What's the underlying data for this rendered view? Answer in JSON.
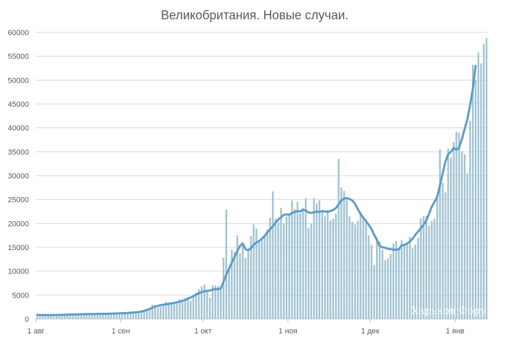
{
  "chart_data": {
    "type": "bar",
    "title": "Великобритания. Новые случаи.",
    "xlabel": "",
    "ylabel": "",
    "ylim": [
      0,
      60000
    ],
    "yticks": [
      0,
      5000,
      10000,
      15000,
      20000,
      25000,
      30000,
      35000,
      40000,
      45000,
      50000,
      55000,
      60000
    ],
    "xticks": [
      {
        "day": 0,
        "label": "1 авг"
      },
      {
        "day": 31,
        "label": "1 сен"
      },
      {
        "day": 61,
        "label": "1 окт"
      },
      {
        "day": 92,
        "label": "1 ноя"
      },
      {
        "day": 122,
        "label": "1 дек"
      },
      {
        "day": 153,
        "label": "1 янв"
      }
    ],
    "grid": true,
    "legend": "none",
    "series": [
      {
        "type": "bar",
        "color": "#9dc3d5",
        "values": [
          900,
          750,
          850,
          700,
          800,
          950,
          850,
          750,
          800,
          900,
          850,
          950,
          1000,
          900,
          1100,
          1050,
          1200,
          1000,
          1100,
          1150,
          1050,
          1000,
          1100,
          1050,
          1150,
          1100,
          1200,
          1300,
          1150,
          1200,
          1250,
          1300,
          1250,
          1400,
          1350,
          1500,
          1450,
          1600,
          1700,
          1550,
          1800,
          2100,
          3000,
          2900,
          2400,
          2600,
          3200,
          3600,
          3500,
          3300,
          3100,
          3500,
          4100,
          3700,
          4400,
          4600,
          3800,
          4800,
          5500,
          6200,
          6800,
          7200,
          6000,
          4500,
          7100,
          7000,
          6900,
          6800,
          12800,
          22900,
          11000,
          14500,
          14000,
          17500,
          13800,
          16000,
          12800,
          14200,
          17300,
          19800,
          18900,
          16200,
          16500,
          17500,
          18800,
          21200,
          26700,
          21000,
          20200,
          23200,
          20000,
          21500,
          22000,
          24800,
          23000,
          24500,
          22100,
          23200,
          25300,
          19000,
          20000,
          25300,
          24200,
          24800,
          22500,
          21500,
          22800,
          20600,
          21000,
          22000,
          33500,
          27500,
          26800,
          24900,
          21500,
          20300,
          19800,
          20500,
          22300,
          20800,
          20200,
          17500,
          15500,
          11300,
          17000,
          16200,
          14500,
          12300,
          12700,
          13600,
          15800,
          16300,
          14700,
          16500,
          15700,
          16000,
          17200,
          14800,
          15600,
          17000,
          21000,
          21500,
          21600,
          19500,
          20500,
          21000,
          25200,
          35500,
          28500,
          26500,
          35700,
          33800,
          37000,
          39200,
          39000,
          35100,
          34500,
          30500,
          41500,
          53200,
          50000,
          55800,
          53500,
          57600,
          58800
        ]
      },
      {
        "type": "line",
        "name": "",
        "color": "#5b9bc8",
        "values": [
          850,
          840,
          830,
          820,
          810,
          820,
          830,
          840,
          850,
          860,
          880,
          900,
          920,
          940,
          960,
          980,
          1000,
          1010,
          1020,
          1030,
          1040,
          1050,
          1060,
          1070,
          1080,
          1090,
          1100,
          1120,
          1140,
          1160,
          1180,
          1200,
          1230,
          1260,
          1300,
          1350,
          1400,
          1450,
          1550,
          1700,
          1900,
          2100,
          2350,
          2600,
          2750,
          2900,
          3000,
          3050,
          3150,
          3250,
          3350,
          3500,
          3650,
          3800,
          4000,
          4250,
          4500,
          4800,
          5100,
          5400,
          5600,
          5800,
          5900,
          5950,
          6100,
          6300,
          6200,
          6400,
          7800,
          9300,
          10500,
          11800,
          13000,
          14200,
          15300,
          15800,
          14600,
          14400,
          14800,
          15500,
          16000,
          16300,
          16800,
          17400,
          18100,
          18800,
          19400,
          20200,
          20800,
          21300,
          21800,
          21900,
          21800,
          22200,
          22400,
          22600,
          22500,
          22900,
          22700,
          22300,
          22200,
          22300,
          22500,
          22400,
          22600,
          22500,
          22400,
          22600,
          22800,
          23200,
          24000,
          24800,
          25200,
          25300,
          25100,
          24800,
          24100,
          23000,
          22000,
          21200,
          20500,
          19700,
          18800,
          17600,
          16500,
          15300,
          15000,
          14900,
          14700,
          14600,
          14500,
          14500,
          14600,
          15400,
          15500,
          15800,
          16200,
          16800,
          17600,
          18300,
          19000,
          19700,
          20600,
          22000,
          23500,
          24500,
          25600,
          28000,
          30500,
          33000,
          34500,
          35000,
          35800,
          35400,
          35900,
          37600,
          39800,
          41800,
          44800,
          48200,
          53000
        ]
      }
    ],
    "watermark": "Харьков Фору"
  }
}
